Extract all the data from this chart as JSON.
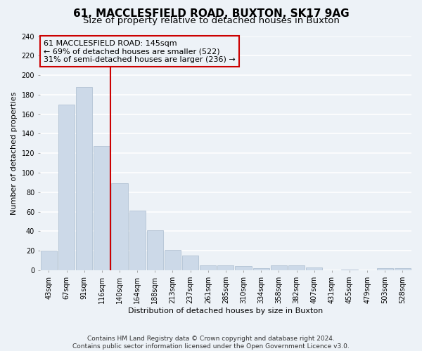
{
  "title": "61, MACCLESFIELD ROAD, BUXTON, SK17 9AG",
  "subtitle": "Size of property relative to detached houses in Buxton",
  "xlabel": "Distribution of detached houses by size in Buxton",
  "ylabel": "Number of detached properties",
  "bar_labels": [
    "43sqm",
    "67sqm",
    "91sqm",
    "116sqm",
    "140sqm",
    "164sqm",
    "188sqm",
    "213sqm",
    "237sqm",
    "261sqm",
    "285sqm",
    "310sqm",
    "334sqm",
    "358sqm",
    "382sqm",
    "407sqm",
    "431sqm",
    "455sqm",
    "479sqm",
    "503sqm",
    "528sqm"
  ],
  "bar_values": [
    20,
    170,
    188,
    127,
    89,
    61,
    41,
    21,
    15,
    5,
    5,
    4,
    2,
    5,
    5,
    3,
    0,
    1,
    0,
    2,
    2
  ],
  "bar_color": "#ccd9e8",
  "bar_edgecolor": "#aabcce",
  "ylim": [
    0,
    240
  ],
  "yticks": [
    0,
    20,
    40,
    60,
    80,
    100,
    120,
    140,
    160,
    180,
    200,
    220,
    240
  ],
  "annotation_box_text": "61 MACCLESFIELD ROAD: 145sqm\n← 69% of detached houses are smaller (522)\n31% of semi-detached houses are larger (236) →",
  "vline_color": "#cc0000",
  "box_edgecolor": "#cc0000",
  "footer_text": "Contains HM Land Registry data © Crown copyright and database right 2024.\nContains public sector information licensed under the Open Government Licence v3.0.",
  "background_color": "#edf2f7",
  "grid_color": "#ffffff",
  "title_fontsize": 11,
  "subtitle_fontsize": 9.5,
  "label_fontsize": 8,
  "tick_fontsize": 7,
  "footer_fontsize": 6.5,
  "annotation_fontsize": 8
}
